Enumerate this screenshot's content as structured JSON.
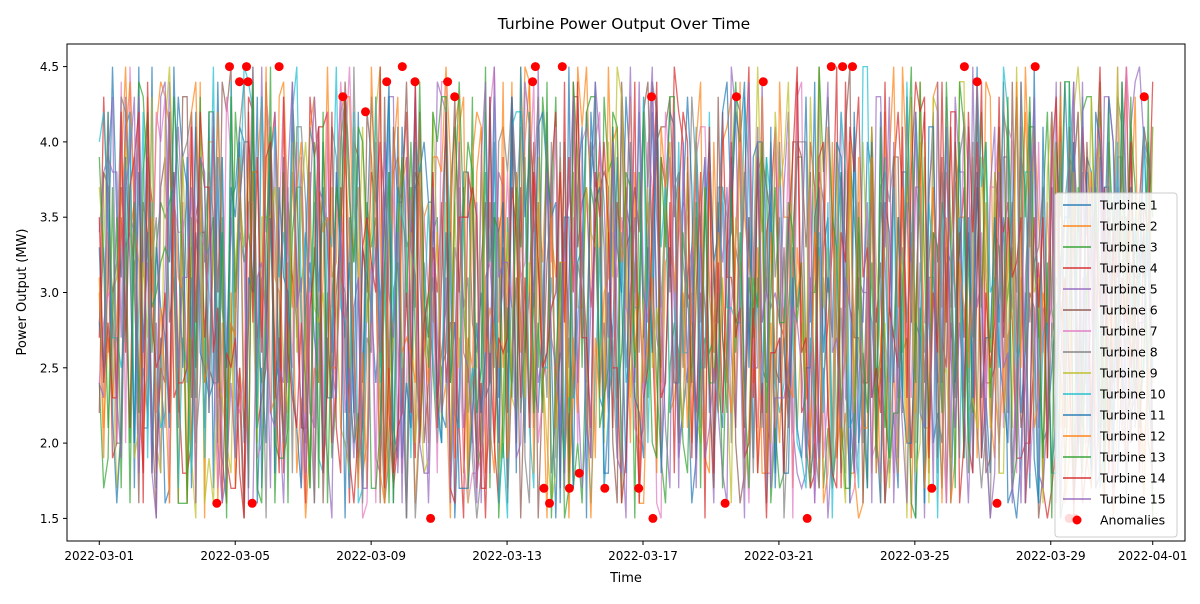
{
  "chart_data": {
    "type": "line",
    "title": "Turbine Power Output Over Time",
    "xlabel": "Time",
    "ylabel": "Power Output (MW)",
    "x_start": "2022-03-01",
    "x_end": "2022-04-01",
    "xlim": [
      "2022-02-28T01:12",
      "2022-04-01T22:48"
    ],
    "ylim": [
      1.35,
      4.65
    ],
    "x_ticks": [
      "2022-03-01",
      "2022-03-05",
      "2022-03-09",
      "2022-03-13",
      "2022-03-17",
      "2022-03-21",
      "2022-03-25",
      "2022-03-29",
      "2022-04-01"
    ],
    "y_ticks": [
      "1.5",
      "2.0",
      "2.5",
      "3.0",
      "3.5",
      "4.0",
      "4.5"
    ],
    "y_range": [
      1.5,
      4.5
    ],
    "grid": false,
    "legend_position": "lower-right",
    "series": [
      {
        "name": "Turbine 1",
        "color": "#1f77b4"
      },
      {
        "name": "Turbine 2",
        "color": "#ff7f0e"
      },
      {
        "name": "Turbine 3",
        "color": "#2ca02c"
      },
      {
        "name": "Turbine 4",
        "color": "#d62728"
      },
      {
        "name": "Turbine 5",
        "color": "#9467bd"
      },
      {
        "name": "Turbine 6",
        "color": "#8c564b"
      },
      {
        "name": "Turbine 7",
        "color": "#e377c2"
      },
      {
        "name": "Turbine 8",
        "color": "#7f7f7f"
      },
      {
        "name": "Turbine 9",
        "color": "#bcbd22"
      },
      {
        "name": "Turbine 10",
        "color": "#17becf"
      },
      {
        "name": "Turbine 11",
        "color": "#1f77b4"
      },
      {
        "name": "Turbine 12",
        "color": "#ff7f0e"
      },
      {
        "name": "Turbine 13",
        "color": "#2ca02c"
      },
      {
        "name": "Turbine 14",
        "color": "#d62728"
      },
      {
        "name": "Turbine 15",
        "color": "#9467bd"
      }
    ],
    "anomalies": {
      "name": "Anomalies",
      "color": "#ff0000",
      "points": [
        {
          "x": "2022-03-04T11:00",
          "y": 1.6
        },
        {
          "x": "2022-03-04T20:00",
          "y": 4.5
        },
        {
          "x": "2022-03-05T03:00",
          "y": 4.4
        },
        {
          "x": "2022-03-05T08:00",
          "y": 4.5
        },
        {
          "x": "2022-03-05T09:00",
          "y": 4.4
        },
        {
          "x": "2022-03-05T12:00",
          "y": 1.6
        },
        {
          "x": "2022-03-06T07:00",
          "y": 4.5
        },
        {
          "x": "2022-03-08T04:00",
          "y": 4.3
        },
        {
          "x": "2022-03-08T20:00",
          "y": 4.2
        },
        {
          "x": "2022-03-09T11:00",
          "y": 4.4
        },
        {
          "x": "2022-03-09T22:00",
          "y": 4.5
        },
        {
          "x": "2022-03-10T07:00",
          "y": 4.4
        },
        {
          "x": "2022-03-10T18:00",
          "y": 1.5
        },
        {
          "x": "2022-03-11T06:00",
          "y": 4.4
        },
        {
          "x": "2022-03-11T11:00",
          "y": 4.3
        },
        {
          "x": "2022-03-13T18:00",
          "y": 4.4
        },
        {
          "x": "2022-03-13T20:00",
          "y": 4.5
        },
        {
          "x": "2022-03-14T02:00",
          "y": 1.7
        },
        {
          "x": "2022-03-14T06:00",
          "y": 1.6
        },
        {
          "x": "2022-03-14T15:00",
          "y": 4.5
        },
        {
          "x": "2022-03-14T20:00",
          "y": 1.7
        },
        {
          "x": "2022-03-15T03:00",
          "y": 1.8
        },
        {
          "x": "2022-03-15T21:00",
          "y": 1.7
        },
        {
          "x": "2022-03-16T21:00",
          "y": 1.7
        },
        {
          "x": "2022-03-17T06:00",
          "y": 4.3
        },
        {
          "x": "2022-03-17T07:00",
          "y": 1.5
        },
        {
          "x": "2022-03-19T10:00",
          "y": 1.6
        },
        {
          "x": "2022-03-19T18:00",
          "y": 4.3
        },
        {
          "x": "2022-03-20T13:00",
          "y": 4.4
        },
        {
          "x": "2022-03-21T20:00",
          "y": 1.5
        },
        {
          "x": "2022-03-22T13:00",
          "y": 4.5
        },
        {
          "x": "2022-03-22T21:00",
          "y": 4.5
        },
        {
          "x": "2022-03-23T04:00",
          "y": 4.5
        },
        {
          "x": "2022-03-25T12:00",
          "y": 1.7
        },
        {
          "x": "2022-03-26T11:00",
          "y": 4.5
        },
        {
          "x": "2022-03-26T20:00",
          "y": 4.4
        },
        {
          "x": "2022-03-27T10:00",
          "y": 1.6
        },
        {
          "x": "2022-03-28T13:00",
          "y": 4.5
        },
        {
          "x": "2022-03-29T13:00",
          "y": 1.5
        },
        {
          "x": "2022-03-29T17:00",
          "y": 1.5
        },
        {
          "x": "2022-03-31T18:00",
          "y": 4.3
        }
      ]
    }
  }
}
